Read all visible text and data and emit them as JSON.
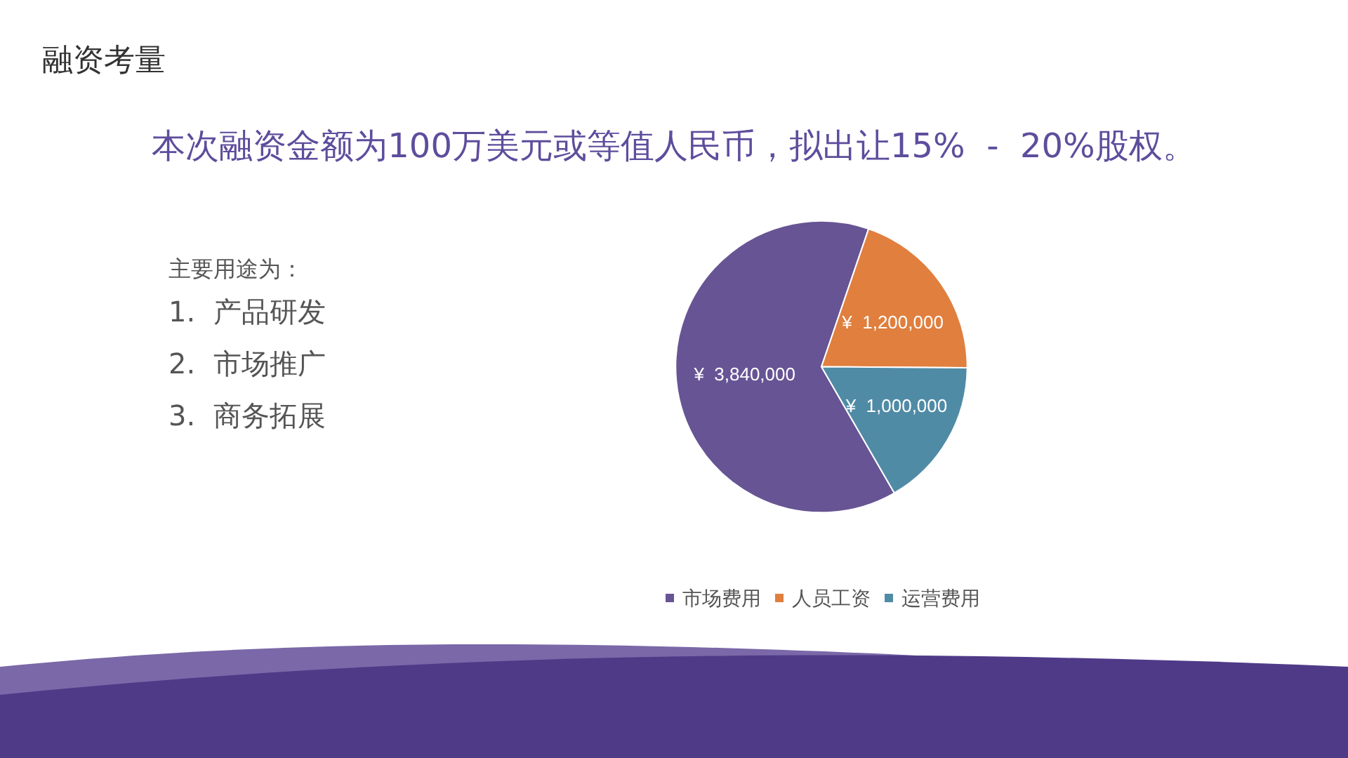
{
  "chart_data": {
    "type": "pie",
    "title": "融资考量",
    "subtitle": "本次融资金额为100万美元或等值人民币，拟出让15%  -  20%股权。",
    "categories": [
      "市场费用",
      "人员工资",
      "运营费用"
    ],
    "values": [
      3840000,
      1200000,
      1000000
    ],
    "value_labels": [
      "¥  3,840,000",
      "¥  1,200,000",
      "¥  1,000,000"
    ],
    "colors": [
      "#675494",
      "#e07f3e",
      "#508ba6"
    ],
    "legend": "bottom",
    "annotations": [
      "主要用途为：",
      "1.  产品研发",
      "2.  市场推广",
      "3.  商务拓展"
    ]
  }
}
